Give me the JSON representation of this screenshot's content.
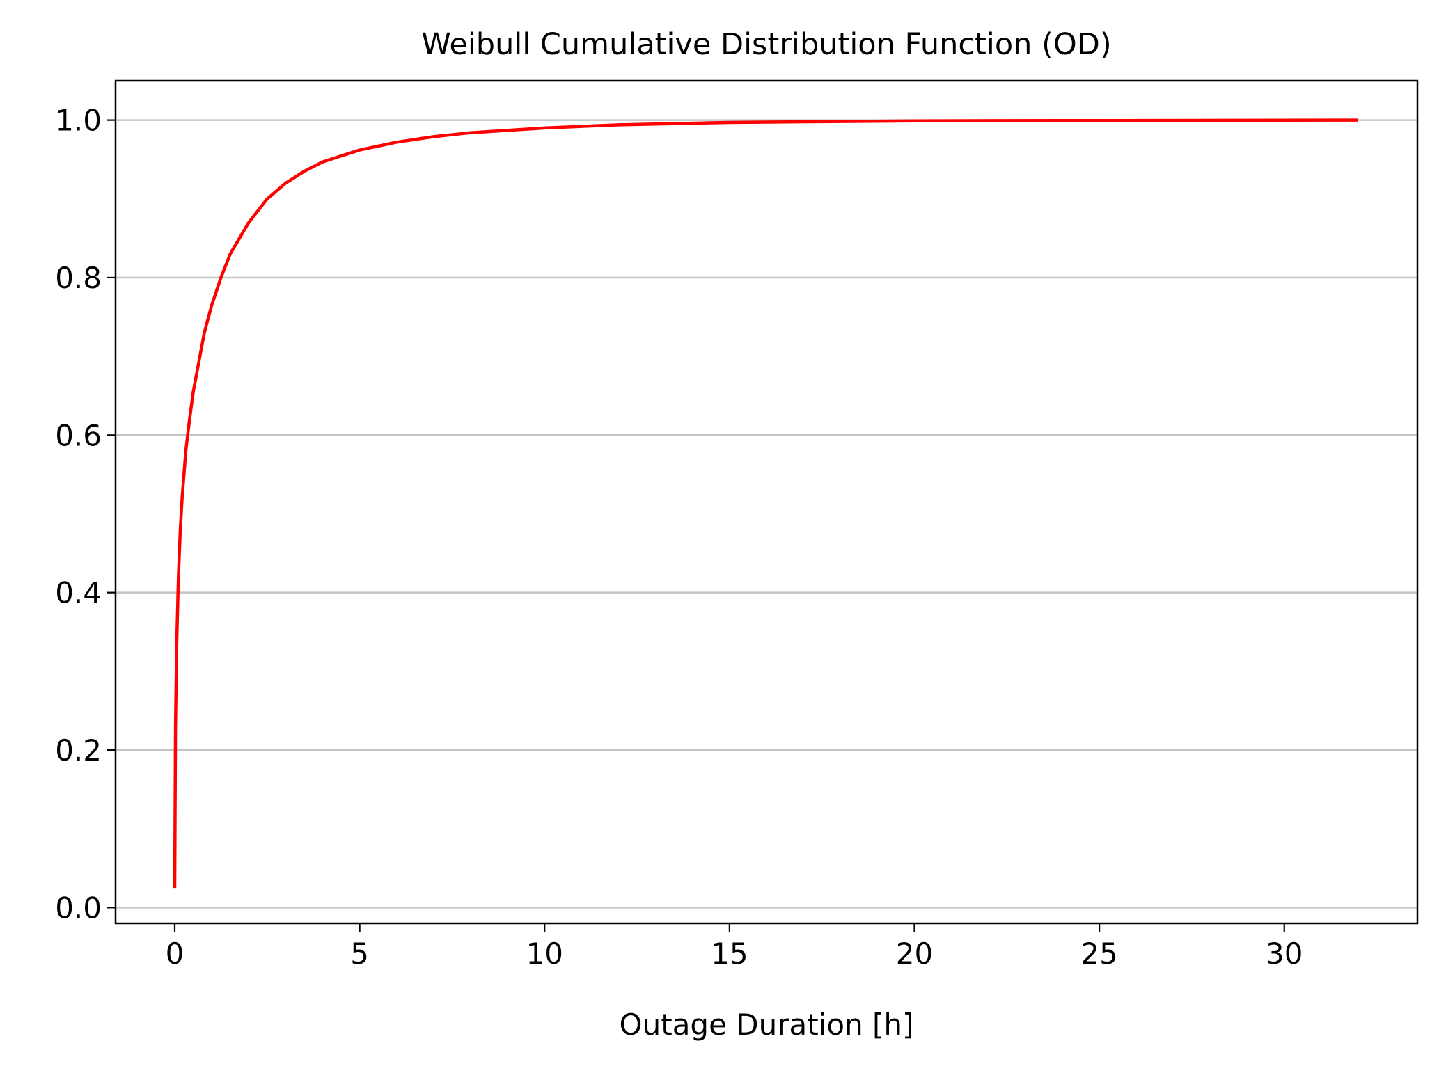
{
  "chart_data": {
    "type": "line",
    "title": "Weibull Cumulative Distribution Function (OD)",
    "xlabel": "Outage Duration [h]",
    "ylabel": "",
    "xlim": [
      -1.6,
      33.6
    ],
    "ylim": [
      -0.02,
      1.05
    ],
    "xticks": [
      0,
      5,
      10,
      15,
      20,
      25,
      30
    ],
    "xtick_labels": [
      "0",
      "5",
      "10",
      "15",
      "20",
      "25",
      "30"
    ],
    "yticks": [
      0.0,
      0.2,
      0.4,
      0.6,
      0.8,
      1.0
    ],
    "ytick_labels": [
      "0.0",
      "0.2",
      "0.4",
      "0.6",
      "0.8",
      "1.0"
    ],
    "grid": "y",
    "legend": "none",
    "series": [
      {
        "color": "#ff0000",
        "x": [
          0.0,
          0.02,
          0.05,
          0.1,
          0.15,
          0.2,
          0.3,
          0.4,
          0.5,
          0.6,
          0.8,
          1.0,
          1.25,
          1.5,
          2.0,
          2.5,
          3.0,
          3.5,
          4.0,
          5.0,
          6.0,
          7.0,
          8.0,
          10.0,
          12.0,
          15.0,
          20.0,
          25.0,
          32.0
        ],
        "y": [
          0.025,
          0.23,
          0.33,
          0.42,
          0.48,
          0.52,
          0.58,
          0.62,
          0.655,
          0.68,
          0.73,
          0.765,
          0.8,
          0.83,
          0.87,
          0.9,
          0.92,
          0.935,
          0.947,
          0.962,
          0.972,
          0.979,
          0.984,
          0.99,
          0.994,
          0.997,
          0.999,
          0.9995,
          1.0
        ]
      }
    ]
  }
}
